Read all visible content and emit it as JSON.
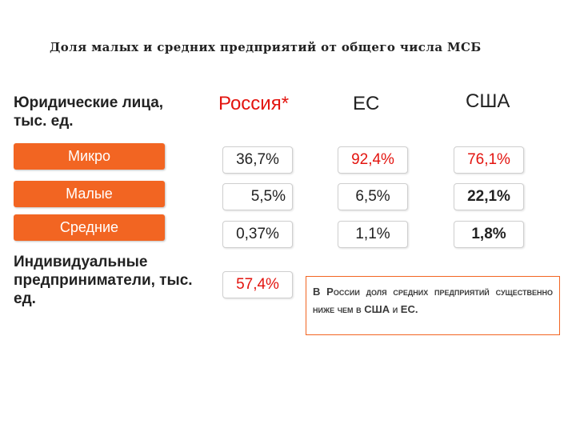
{
  "title": "Доля малых и средних предприятий от общего числа МСБ",
  "legal_entities_heading": "Юридические лица, тыс. ед.",
  "individual_heading": "Индивидуальные предприниматели, тыс. ед.",
  "columns": {
    "russia": "Россия*",
    "eu": "ЕС",
    "usa": "США"
  },
  "categories": [
    "Микро",
    "Малые",
    "Средние"
  ],
  "values": {
    "russia": [
      "36,7%",
      "5,5%",
      "0,37%"
    ],
    "eu": [
      "92,4%",
      "6,5%",
      "1,1%"
    ],
    "usa": [
      "76,1%",
      "22,1%",
      "1,8%"
    ]
  },
  "individual_russia": "57,4%",
  "note": "В России доля средних предприятий существенно ниже чем в США и ЕС.",
  "colors": {
    "accent": "#f26522",
    "highlight": "#e3140f"
  }
}
